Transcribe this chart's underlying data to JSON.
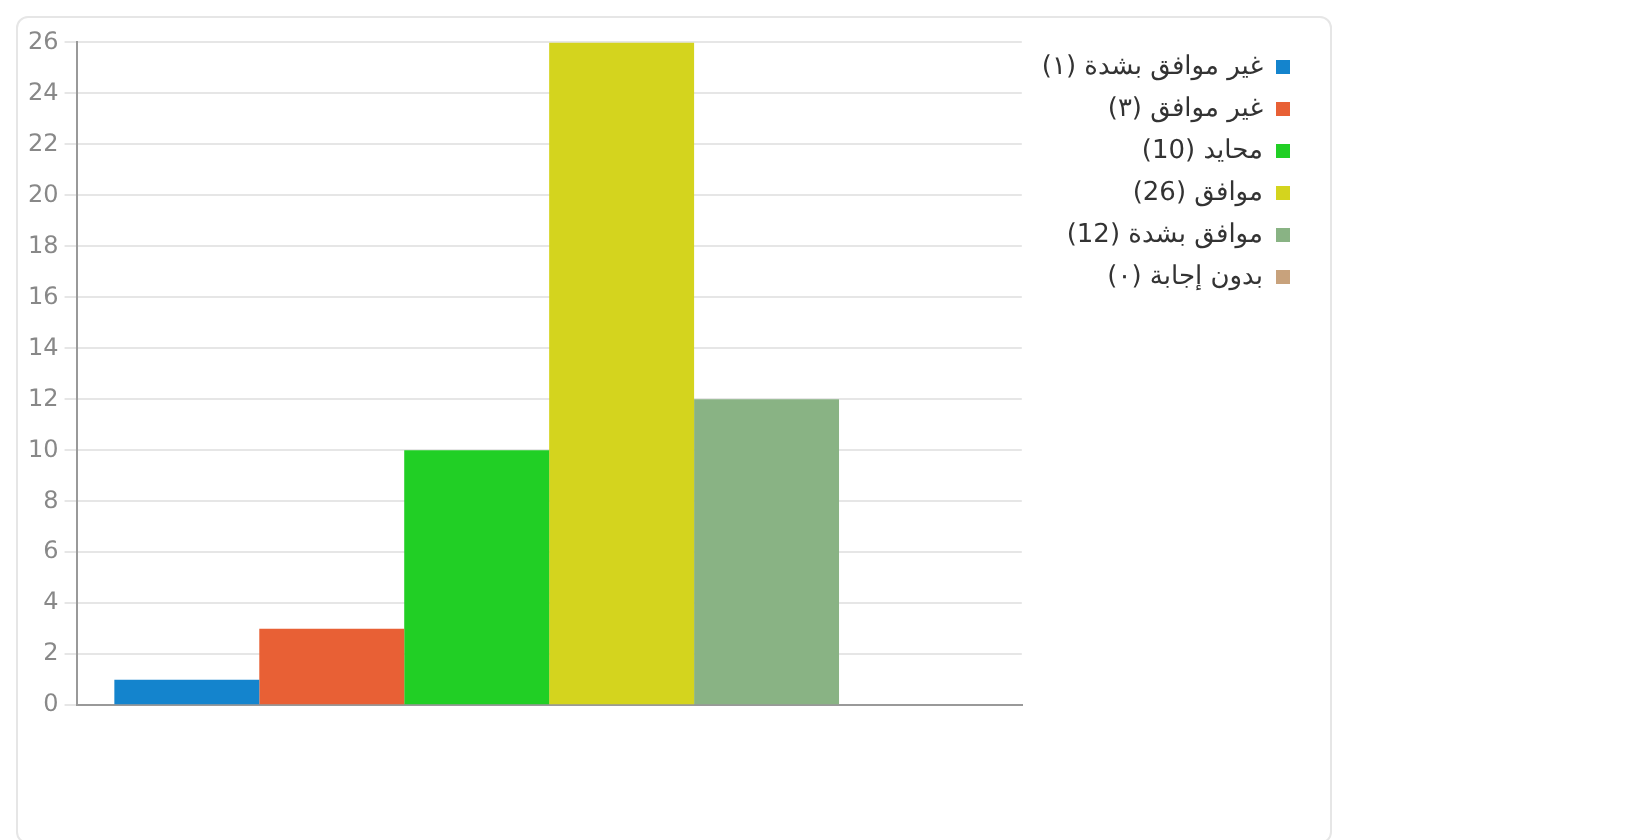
{
  "chart_data": {
    "type": "bar",
    "categories": [
      null
    ],
    "series": [
      {
        "name": "غير موافق بشدة (١)",
        "color": "#1484cd",
        "values": [
          1
        ]
      },
      {
        "name": "غير موافق (٣)",
        "color": "#e86035",
        "values": [
          3
        ]
      },
      {
        "name": "محايد (10)",
        "color": "#21cf25",
        "values": [
          10
        ]
      },
      {
        "name": "موافق (26)",
        "color": "#d4d41e",
        "values": [
          26
        ]
      },
      {
        "name": "موافق بشدة (12)",
        "color": "#89b384",
        "values": [
          12
        ]
      },
      {
        "name": "بدون إجابة (٠)",
        "color": "#c8a27c",
        "values": [
          0
        ]
      }
    ],
    "ylim": [
      0,
      26
    ],
    "yticks": [
      0,
      2,
      4,
      6,
      8,
      10,
      12,
      14,
      16,
      18,
      20,
      22,
      24,
      26
    ],
    "grid": "y",
    "legend": "right"
  }
}
